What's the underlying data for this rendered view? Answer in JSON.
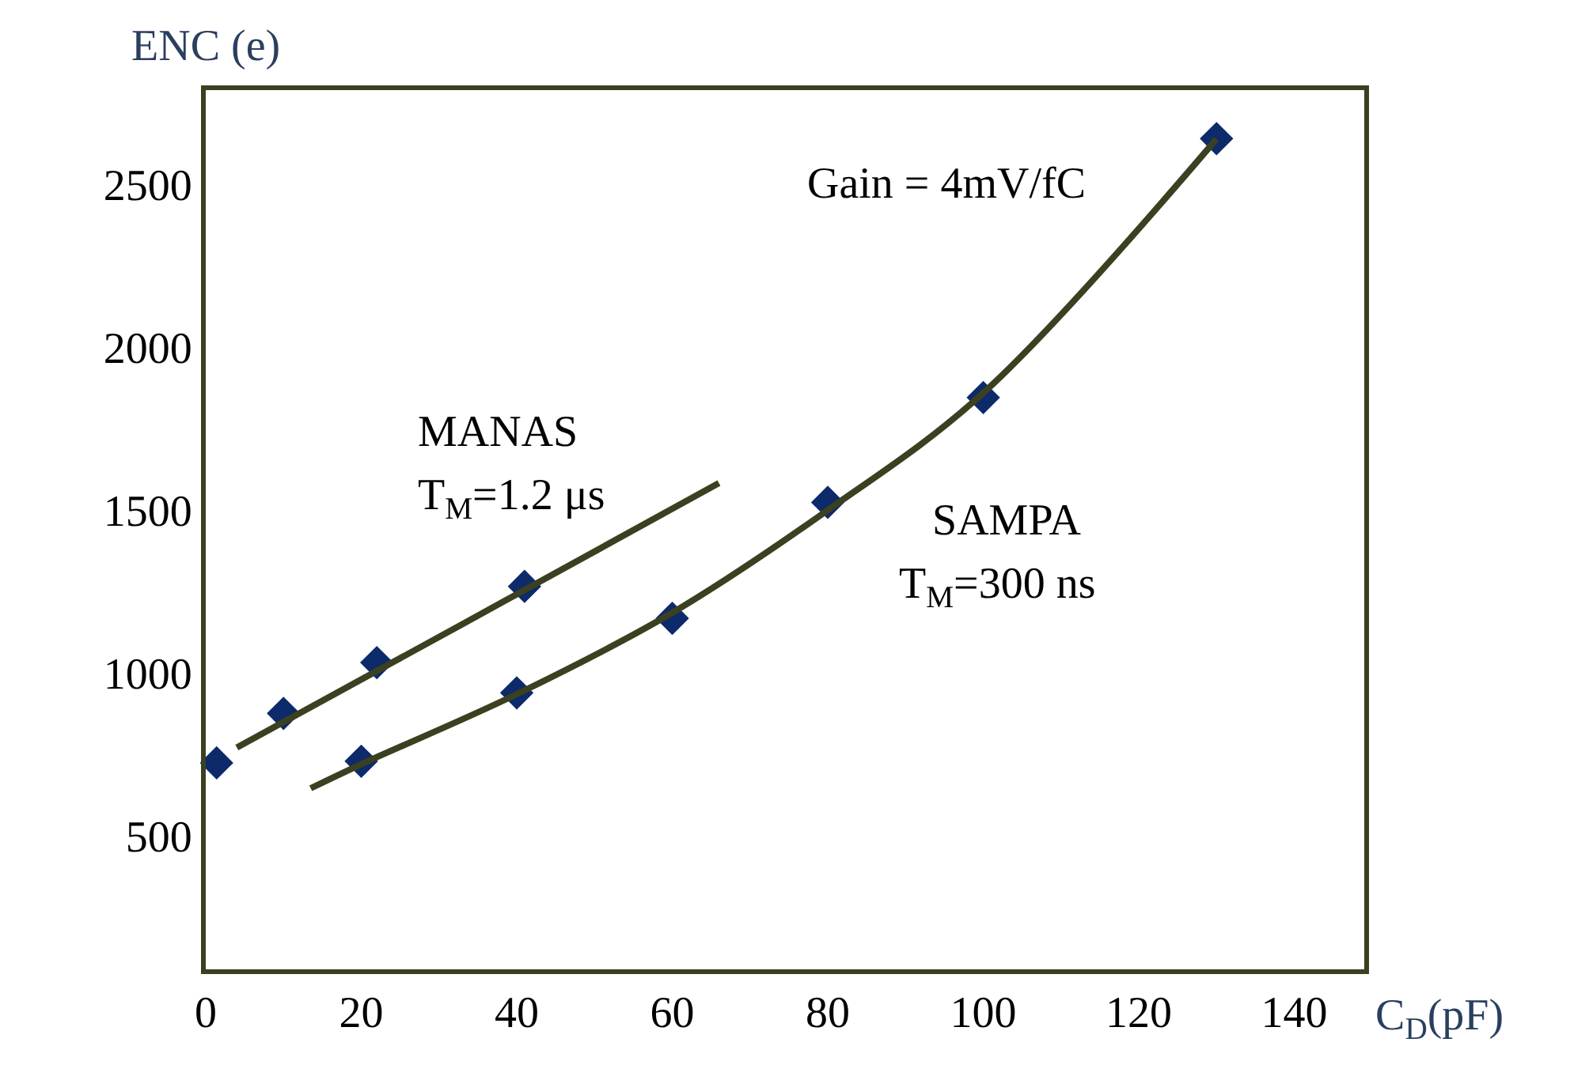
{
  "chart_data": {
    "type": "scatter",
    "xlabel": "C$_{D}$(pF)",
    "ylabel": "ENC (e)",
    "xlim": [
      0,
      149
    ],
    "ylim": [
      90,
      2790
    ],
    "xticks": [
      0,
      20,
      40,
      60,
      80,
      100,
      120,
      140
    ],
    "yticks": [
      500,
      1000,
      1500,
      2000,
      2500
    ],
    "series": [
      {
        "name": "MANAS",
        "color": "#0d2a6b",
        "marker": "diamond",
        "x": [
          1.4,
          10,
          22,
          41
        ],
        "values": [
          724,
          876,
          1032,
          1266
        ]
      },
      {
        "name": "SAMPA",
        "color": "#0d2a6b",
        "marker": "diamond",
        "x": [
          20,
          40,
          60,
          80,
          100,
          130
        ],
        "values": [
          729,
          939,
          1168,
          1524,
          1846,
          2641
        ]
      },
      {
        "type": "line",
        "color": "#3b4020",
        "marker": "none",
        "x": [
          4,
          33,
          66
        ],
        "values": [
          771,
          1150,
          1583
        ]
      },
      {
        "type": "line",
        "color": "#3b4020",
        "marker": "none",
        "x": [
          13.5,
          20,
          40,
          60,
          80,
          100,
          130
        ],
        "values": [
          646,
          720,
          935,
          1185,
          1500,
          1860,
          2640
        ]
      }
    ],
    "annotations": [
      "T$_{M}$=1.2 μs",
      "T$_{M}$=300 ns",
      "Gain = 4mV/fC"
    ]
  }
}
